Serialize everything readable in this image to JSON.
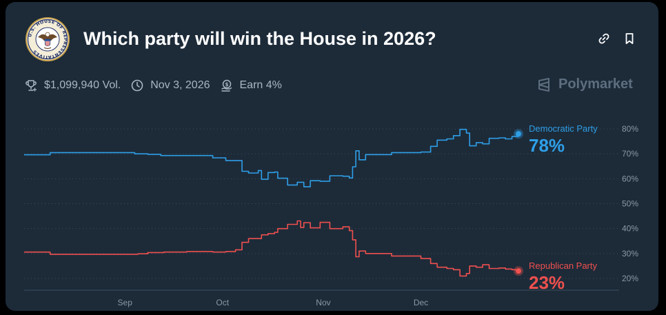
{
  "header": {
    "title": "Which party will win the House in 2026?",
    "seal_text": "U.S. HOUSE OF REPRESENTATIVES"
  },
  "meta": {
    "volume": "$1,099,940 Vol.",
    "end_date": "Nov 3, 2026",
    "earn": "Earn 4%"
  },
  "brand": {
    "name": "Polymarket"
  },
  "icons": {
    "trophy": "trophy-icon",
    "clock": "clock-icon",
    "earn": "earn-icon",
    "link": "link-icon",
    "bookmark": "bookmark-icon",
    "brand": "polymarket-logo-icon"
  },
  "colors": {
    "background": "#1d2b39",
    "democratic": "#2e9fe8",
    "republican": "#f0504e",
    "grid": "#3d4c5b",
    "axis_text": "#8b98a6"
  },
  "chart_data": {
    "type": "line",
    "x_ticks": [
      "Sep",
      "Oct",
      "Nov",
      "Dec"
    ],
    "y_ticks": [
      80,
      70,
      60,
      50,
      40,
      30,
      20
    ],
    "y_tick_suffix": "%",
    "ylim": [
      20,
      80
    ],
    "grid": "horizontal-dotted",
    "legend": "right-end-labels",
    "series": [
      {
        "name": "Democratic Party",
        "value_label": "78%",
        "color": "#2e9fe8",
        "points": [
          [
            "2025-08-01",
            69.6
          ],
          [
            "2025-08-08",
            69.6
          ],
          [
            "2025-08-09",
            70.5
          ],
          [
            "2025-09-03",
            70.5
          ],
          [
            "2025-09-04",
            70.0
          ],
          [
            "2025-09-08",
            69.8
          ],
          [
            "2025-09-12",
            69.3
          ],
          [
            "2025-09-27",
            69.3
          ],
          [
            "2025-09-28",
            68.4
          ],
          [
            "2025-10-02",
            67.3
          ],
          [
            "2025-10-05",
            67.3
          ],
          [
            "2025-10-07",
            63.0
          ],
          [
            "2025-10-09",
            62.3
          ],
          [
            "2025-10-12",
            63.3
          ],
          [
            "2025-10-13",
            59.8
          ],
          [
            "2025-10-15",
            62.5
          ],
          [
            "2025-10-17",
            62.7
          ],
          [
            "2025-10-18",
            60.2
          ],
          [
            "2025-10-21",
            57.5
          ],
          [
            "2025-10-24",
            58.6
          ],
          [
            "2025-10-26",
            56.8
          ],
          [
            "2025-10-28",
            59.2
          ],
          [
            "2025-10-31",
            59.0
          ],
          [
            "2025-11-03",
            61.2
          ],
          [
            "2025-11-07",
            61.0
          ],
          [
            "2025-11-09",
            60.3
          ],
          [
            "2025-11-10",
            64.8
          ],
          [
            "2025-11-11",
            71.2
          ],
          [
            "2025-11-12",
            67.6
          ],
          [
            "2025-11-14",
            69.7
          ],
          [
            "2025-11-20",
            69.7
          ],
          [
            "2025-11-22",
            70.5
          ],
          [
            "2025-12-01",
            70.7
          ],
          [
            "2025-12-04",
            73.0
          ],
          [
            "2025-12-06",
            75.5
          ],
          [
            "2025-12-09",
            76.0
          ],
          [
            "2025-12-11",
            77.3
          ],
          [
            "2025-12-13",
            79.8
          ],
          [
            "2025-12-15",
            78.3
          ],
          [
            "2025-12-16",
            73.2
          ],
          [
            "2025-12-18",
            74.5
          ],
          [
            "2025-12-20",
            74.0
          ],
          [
            "2025-12-22",
            76.2
          ],
          [
            "2025-12-25",
            76.4
          ],
          [
            "2025-12-27",
            76.0
          ],
          [
            "2025-12-29",
            77.0
          ],
          [
            "2025-12-31",
            78.0
          ]
        ]
      },
      {
        "name": "Republican Party",
        "value_label": "23%",
        "color": "#f0504e",
        "points": [
          [
            "2025-08-01",
            30.6
          ],
          [
            "2025-08-08",
            30.6
          ],
          [
            "2025-08-09",
            29.7
          ],
          [
            "2025-09-03",
            29.7
          ],
          [
            "2025-09-05",
            29.9
          ],
          [
            "2025-09-08",
            30.4
          ],
          [
            "2025-09-13",
            30.6
          ],
          [
            "2025-09-20",
            30.8
          ],
          [
            "2025-09-28",
            30.6
          ],
          [
            "2025-10-02",
            30.8
          ],
          [
            "2025-10-05",
            31.5
          ],
          [
            "2025-10-07",
            34.5
          ],
          [
            "2025-10-09",
            36.0
          ],
          [
            "2025-10-12",
            36.0
          ],
          [
            "2025-10-13",
            37.5
          ],
          [
            "2025-10-15",
            38.0
          ],
          [
            "2025-10-17",
            38.5
          ],
          [
            "2025-10-18",
            40.0
          ],
          [
            "2025-10-21",
            41.7
          ],
          [
            "2025-10-24",
            43.1
          ],
          [
            "2025-10-25",
            40.5
          ],
          [
            "2025-10-26",
            42.4
          ],
          [
            "2025-10-28",
            40.3
          ],
          [
            "2025-10-31",
            42.5
          ],
          [
            "2025-11-03",
            40.0
          ],
          [
            "2025-11-07",
            40.7
          ],
          [
            "2025-11-09",
            39.2
          ],
          [
            "2025-11-10",
            35.5
          ],
          [
            "2025-11-11",
            28.7
          ],
          [
            "2025-11-12",
            31.0
          ],
          [
            "2025-11-14",
            30.0
          ],
          [
            "2025-11-20",
            30.0
          ],
          [
            "2025-11-22",
            29.0
          ],
          [
            "2025-12-01",
            28.0
          ],
          [
            "2025-12-04",
            26.0
          ],
          [
            "2025-12-06",
            24.5
          ],
          [
            "2025-12-09",
            24.0
          ],
          [
            "2025-12-11",
            23.5
          ],
          [
            "2025-12-13",
            21.0
          ],
          [
            "2025-12-15",
            22.0
          ],
          [
            "2025-12-16",
            25.0
          ],
          [
            "2025-12-18",
            24.5
          ],
          [
            "2025-12-20",
            25.5
          ],
          [
            "2025-12-22",
            24.0
          ],
          [
            "2025-12-25",
            24.2
          ],
          [
            "2025-12-27",
            23.8
          ],
          [
            "2025-12-29",
            23.5
          ],
          [
            "2025-12-31",
            23.0
          ]
        ]
      }
    ]
  }
}
